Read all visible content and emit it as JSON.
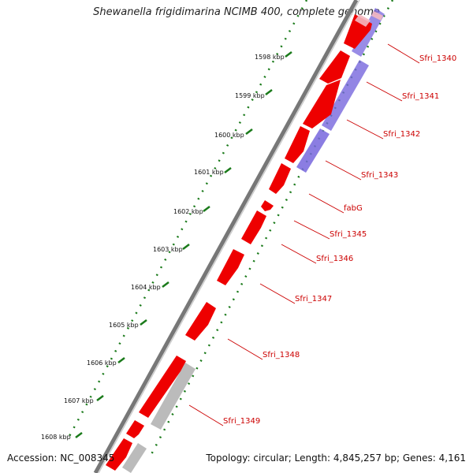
{
  "title": "Shewanella frigidimarina NCIMB 400, complete genome",
  "footer": {
    "accession": "Accession: NC_008345",
    "summary": "Topology: circular; Length: 4,845,257 bp; Genes: 4,161"
  },
  "colors": {
    "backbone": "#777777",
    "forward_gene": "#ee0000",
    "blast_hit": "#7766dd",
    "other_hit": "#bbbbbb",
    "tick": "#1a7a1a",
    "label": "#cc0000"
  },
  "kbp_ticks": [
    "1598 kbp",
    "1599 kbp",
    "1600 kbp",
    "1601 kbp",
    "1602 kbp",
    "1603 kbp",
    "1604 kbp",
    "1605 kbp",
    "1606 kbp",
    "1607 kbp",
    "1608 kbp"
  ],
  "gene_labels": [
    "Sfri_1340",
    "Sfri_1341",
    "Sfri_1342",
    "Sfri_1343",
    "fabG",
    "Sfri_1345",
    "Sfri_1346",
    "Sfri_1347",
    "Sfri_1348",
    "Sfri_1349"
  ]
}
